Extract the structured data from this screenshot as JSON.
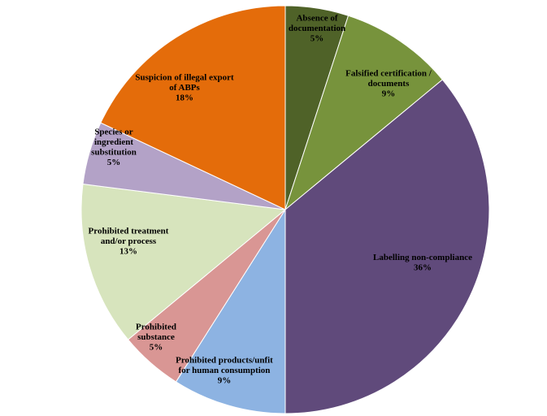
{
  "chart_data": {
    "type": "pie",
    "start_angle_deg": 0,
    "direction": "clockwise",
    "slices": [
      {
        "label": "Absence of documentation",
        "value": 5,
        "pct_label": "5%",
        "color": "#4f6228",
        "lines": [
          "Absence of",
          "documentation",
          "5%"
        ]
      },
      {
        "label": "Falsified certification / documents",
        "value": 9,
        "pct_label": "9%",
        "color": "#77933c",
        "lines": [
          "Falsified certification /",
          "documents",
          "9%"
        ]
      },
      {
        "label": "Labelling non-compliance",
        "value": 36,
        "pct_label": "36%",
        "color": "#604a7b",
        "lines": [
          "Labelling non-compliance",
          "36%"
        ]
      },
      {
        "label": "Prohibited products/unfit for human consumption",
        "value": 9,
        "pct_label": "9%",
        "color": "#8db3e2",
        "lines": [
          "Prohibited products/unfit",
          "for human consumption",
          "9%"
        ]
      },
      {
        "label": "Prohibited substance",
        "value": 5,
        "pct_label": "5%",
        "color": "#d99694",
        "lines": [
          "Prohibited",
          "substance",
          "5%"
        ]
      },
      {
        "label": "Prohibited treatment and/or process",
        "value": 13,
        "pct_label": "13%",
        "color": "#d7e4bd",
        "lines": [
          "Prohibited treatment",
          "and/or process",
          "13%"
        ]
      },
      {
        "label": "Species or ingredient substitution",
        "value": 5,
        "pct_label": "5%",
        "color": "#b3a2c7",
        "lines": [
          "Species or",
          "ingredient",
          "substitution",
          "5%"
        ]
      },
      {
        "label": "Suspicion of illegal export of ABPs",
        "value": 18,
        "pct_label": "18%",
        "color": "#e46c0a",
        "lines": [
          "Suspicion of illegal export",
          "of ABPs",
          "18%"
        ]
      }
    ]
  }
}
